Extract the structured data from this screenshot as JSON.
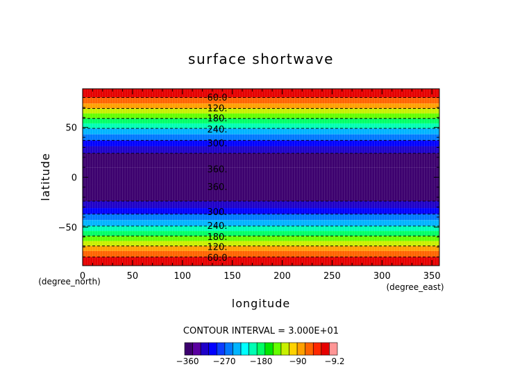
{
  "chart_data": {
    "type": "heatmap",
    "title": "surface shortwave",
    "xlabel": "longitude",
    "ylabel": "latitude",
    "x_unit": "(degree_east)",
    "y_unit": "(degree_north)",
    "xlim": [
      0,
      357.5
    ],
    "ylim": [
      -88.75,
      88.75
    ],
    "xticks": [
      0,
      50,
      100,
      150,
      200,
      250,
      300,
      350
    ],
    "yticks": [
      -50,
      0,
      50
    ],
    "ytick_labels": [
      "−50",
      "0",
      "50"
    ],
    "contour_interval_text": "CONTOUR INTERVAL = 3.000E+01",
    "contour_interval": 30,
    "bands": [
      {
        "lat0": 80,
        "lat1": 88.75,
        "value": -15
      },
      {
        "lat0": 74,
        "lat1": 80,
        "value": -45
      },
      {
        "lat0": 69,
        "lat1": 74,
        "value": -75
      },
      {
        "lat0": 64,
        "lat1": 69,
        "value": -105
      },
      {
        "lat0": 59,
        "lat1": 64,
        "value": -135
      },
      {
        "lat0": 54,
        "lat1": 59,
        "value": -165
      },
      {
        "lat0": 49,
        "lat1": 54,
        "value": -195
      },
      {
        "lat0": 43,
        "lat1": 49,
        "value": -225
      },
      {
        "lat0": 37,
        "lat1": 43,
        "value": -255
      },
      {
        "lat0": 31,
        "lat1": 37,
        "value": -285
      },
      {
        "lat0": 24,
        "lat1": 31,
        "value": -315
      },
      {
        "lat0": 10,
        "lat1": 24,
        "value": -345
      },
      {
        "lat0": -8,
        "lat1": 10,
        "value": -355
      },
      {
        "lat0": -24,
        "lat1": -8,
        "value": -345
      },
      {
        "lat0": -31,
        "lat1": -24,
        "value": -315
      },
      {
        "lat0": -37,
        "lat1": -31,
        "value": -285
      },
      {
        "lat0": -43,
        "lat1": -37,
        "value": -255
      },
      {
        "lat0": -49,
        "lat1": -43,
        "value": -225
      },
      {
        "lat0": -54,
        "lat1": -49,
        "value": -195
      },
      {
        "lat0": -59,
        "lat1": -54,
        "value": -165
      },
      {
        "lat0": -64,
        "lat1": -59,
        "value": -135
      },
      {
        "lat0": -69,
        "lat1": -64,
        "value": -105
      },
      {
        "lat0": -74,
        "lat1": -69,
        "value": -75
      },
      {
        "lat0": -80,
        "lat1": -74,
        "value": -45
      },
      {
        "lat0": -88.75,
        "lat1": -80,
        "value": -15
      }
    ],
    "contour_labels": [
      {
        "text": "60.0",
        "lat": 80.5
      },
      {
        "text": "120.",
        "lat": 69.5
      },
      {
        "text": "180.",
        "lat": 59.5
      },
      {
        "text": "240.",
        "lat": 48.5
      },
      {
        "text": "300.",
        "lat": 34.5
      },
      {
        "text": "360.",
        "lat": 8.5
      },
      {
        "text": "360.",
        "lat": -9.5
      },
      {
        "text": "300.",
        "lat": -34.5
      },
      {
        "text": "240.",
        "lat": -48.5
      },
      {
        "text": "180.",
        "lat": -59.5
      },
      {
        "text": "120.",
        "lat": -69.5
      },
      {
        "text": "60.0",
        "lat": -80.5
      }
    ],
    "contour_lines_lat": [
      80,
      69,
      59,
      49,
      37,
      24,
      -24,
      -37,
      -49,
      -59,
      -69,
      -80
    ],
    "colorbar": {
      "colors": [
        "#3c006e",
        "#5a00a0",
        "#1e00c8",
        "#0000ff",
        "#0a3cff",
        "#0078ff",
        "#00b4ff",
        "#00ffff",
        "#00ffb4",
        "#00ff64",
        "#00e600",
        "#64ff00",
        "#c8f000",
        "#ffd200",
        "#ffa000",
        "#ff6400",
        "#ff2800",
        "#e60000",
        "#ff9696"
      ],
      "tick_labels": [
        "−360",
        "−270",
        "−180",
        "−90",
        "−9.2"
      ]
    }
  }
}
